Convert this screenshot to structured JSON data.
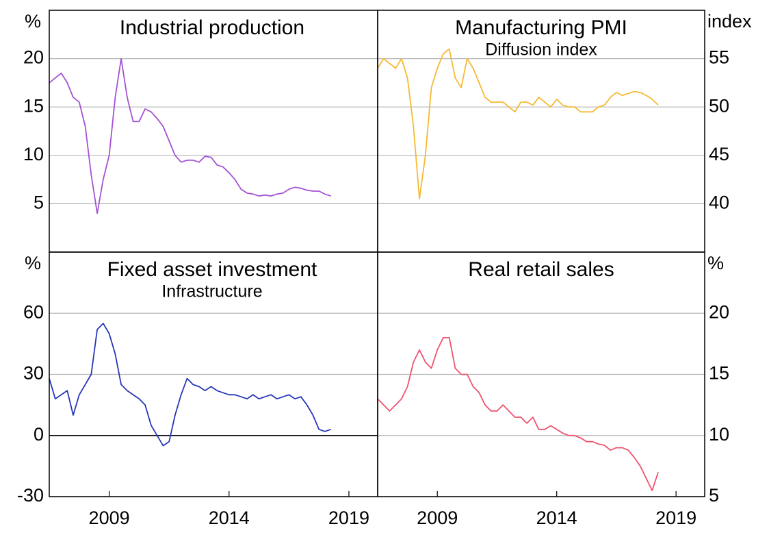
{
  "chart_data": [
    {
      "type": "line",
      "title": "Industrial production",
      "unit": "%",
      "axis_side": "left",
      "x": [
        2007.0,
        2007.25,
        2007.5,
        2007.75,
        2008.0,
        2008.25,
        2008.5,
        2008.75,
        2009.0,
        2009.25,
        2009.5,
        2009.75,
        2010.0,
        2010.25,
        2010.5,
        2010.75,
        2011.0,
        2011.25,
        2011.5,
        2011.75,
        2012.0,
        2012.25,
        2012.5,
        2012.75,
        2013.0,
        2013.25,
        2013.5,
        2013.75,
        2014.0,
        2014.25,
        2014.5,
        2014.75,
        2015.0,
        2015.25,
        2015.5,
        2015.75,
        2016.0,
        2016.25,
        2016.5,
        2016.75,
        2017.0,
        2017.25,
        2017.5,
        2017.75,
        2018.0,
        2018.25,
        2018.5,
        2018.75
      ],
      "series": [
        {
          "name": "Industrial production",
          "color": "#a452d4",
          "values": [
            17.5,
            18,
            18.5,
            17.5,
            16,
            15.5,
            13,
            8,
            4,
            7.5,
            10,
            16,
            20,
            16,
            13.5,
            13.5,
            14.8,
            14.5,
            13.8,
            13,
            11.5,
            10,
            9.3,
            9.5,
            9.5,
            9.3,
            9.9,
            9.8,
            9,
            8.8,
            8.2,
            7.5,
            6.5,
            6.1,
            6,
            5.8,
            5.9,
            5.8,
            6,
            6.1,
            6.5,
            6.7,
            6.6,
            6.4,
            6.3,
            6.3,
            6,
            5.8
          ]
        }
      ],
      "xlim": [
        2007,
        2020.7
      ],
      "ylim": [
        0,
        25
      ],
      "yticks": [
        5,
        10,
        15,
        20
      ],
      "grid": true
    },
    {
      "type": "line",
      "title": "Manufacturing PMI",
      "subtitle": "Diffusion index",
      "unit": "index",
      "axis_side": "right",
      "x": [
        2007.0,
        2007.25,
        2007.5,
        2007.75,
        2008.0,
        2008.25,
        2008.5,
        2008.75,
        2009.0,
        2009.25,
        2009.5,
        2009.75,
        2010.0,
        2010.25,
        2010.5,
        2010.75,
        2011.0,
        2011.25,
        2011.5,
        2011.75,
        2012.0,
        2012.25,
        2012.5,
        2012.75,
        2013.0,
        2013.25,
        2013.5,
        2013.75,
        2014.0,
        2014.25,
        2014.5,
        2014.75,
        2015.0,
        2015.25,
        2015.5,
        2015.75,
        2016.0,
        2016.25,
        2016.5,
        2016.75,
        2017.0,
        2017.25,
        2017.5,
        2017.75,
        2018.0,
        2018.25,
        2018.5,
        2018.75
      ],
      "series": [
        {
          "name": "Manufacturing PMI",
          "color": "#f6b931",
          "values": [
            54,
            55,
            54.5,
            54,
            55,
            53,
            48,
            40.5,
            45,
            52,
            54,
            55.5,
            56,
            53,
            52,
            55,
            54,
            52.5,
            51,
            50.5,
            50.5,
            50.5,
            50,
            49.5,
            50.5,
            50.5,
            50.2,
            51,
            50.5,
            50,
            50.8,
            50.2,
            50,
            50,
            49.5,
            49.5,
            49.5,
            50,
            50.2,
            51,
            51.5,
            51.2,
            51.4,
            51.6,
            51.5,
            51.2,
            50.8,
            50.2
          ]
        }
      ],
      "xlim": [
        2007,
        2020.7
      ],
      "ylim": [
        35,
        60
      ],
      "yticks": [
        40,
        45,
        50,
        55
      ],
      "grid": true
    },
    {
      "type": "line",
      "title": "Fixed asset investment",
      "subtitle": "Infrastructure",
      "unit": "%",
      "axis_side": "left",
      "x": [
        2007.0,
        2007.25,
        2007.5,
        2007.75,
        2008.0,
        2008.25,
        2008.5,
        2008.75,
        2009.0,
        2009.25,
        2009.5,
        2009.75,
        2010.0,
        2010.25,
        2010.5,
        2010.75,
        2011.0,
        2011.25,
        2011.5,
        2011.75,
        2012.0,
        2012.25,
        2012.5,
        2012.75,
        2013.0,
        2013.25,
        2013.5,
        2013.75,
        2014.0,
        2014.25,
        2014.5,
        2014.75,
        2015.0,
        2015.25,
        2015.5,
        2015.75,
        2016.0,
        2016.25,
        2016.5,
        2016.75,
        2017.0,
        2017.25,
        2017.5,
        2017.75,
        2018.0,
        2018.25,
        2018.5,
        2018.75
      ],
      "series": [
        {
          "name": "Fixed asset investment",
          "color": "#2536b8",
          "values": [
            28,
            18,
            20,
            22,
            10,
            20,
            25,
            30,
            52,
            55,
            50,
            40,
            25,
            22,
            20,
            18,
            15,
            5,
            0,
            -5,
            -3,
            10,
            20,
            28,
            25,
            24,
            22,
            24,
            22,
            21,
            20,
            20,
            19,
            18,
            20,
            18,
            19,
            20,
            18,
            19,
            20,
            18,
            19,
            15,
            10,
            3,
            2,
            3
          ]
        }
      ],
      "xlim": [
        2007,
        2020.7
      ],
      "ylim": [
        -30,
        90
      ],
      "yticks": [
        -30,
        0,
        30,
        60
      ],
      "xticks": [
        {
          "value": 2009.5,
          "label": "2009"
        },
        {
          "value": 2014.5,
          "label": "2014"
        },
        {
          "value": 2019.5,
          "label": "2019"
        }
      ],
      "grid": true
    },
    {
      "type": "line",
      "title": "Real retail sales",
      "unit": "%",
      "axis_side": "right",
      "x": [
        2007.0,
        2007.25,
        2007.5,
        2007.75,
        2008.0,
        2008.25,
        2008.5,
        2008.75,
        2009.0,
        2009.25,
        2009.5,
        2009.75,
        2010.0,
        2010.25,
        2010.5,
        2010.75,
        2011.0,
        2011.25,
        2011.5,
        2011.75,
        2012.0,
        2012.25,
        2012.5,
        2012.75,
        2013.0,
        2013.25,
        2013.5,
        2013.75,
        2014.0,
        2014.25,
        2014.5,
        2014.75,
        2015.0,
        2015.25,
        2015.5,
        2015.75,
        2016.0,
        2016.25,
        2016.5,
        2016.75,
        2017.0,
        2017.25,
        2017.5,
        2017.75,
        2018.0,
        2018.25,
        2018.5,
        2018.75
      ],
      "series": [
        {
          "name": "Real retail sales",
          "color": "#f0526f",
          "values": [
            13,
            12.5,
            12,
            12.5,
            13,
            14,
            16,
            17,
            16,
            15.5,
            17,
            18,
            18,
            15.5,
            15,
            15,
            14,
            13.5,
            12.5,
            12,
            12,
            12.5,
            12,
            11.5,
            11.5,
            11,
            11.5,
            10.5,
            10.5,
            10.8,
            10.5,
            10.2,
            10,
            10,
            9.8,
            9.5,
            9.5,
            9.3,
            9.2,
            8.8,
            9,
            9,
            8.8,
            8.2,
            7.5,
            6.5,
            5.5,
            7
          ]
        }
      ],
      "xlim": [
        2007,
        2020.7
      ],
      "ylim": [
        5,
        25
      ],
      "yticks": [
        5,
        10,
        15,
        20
      ],
      "xticks": [
        {
          "value": 2009.5,
          "label": "2009"
        },
        {
          "value": 2014.5,
          "label": "2014"
        },
        {
          "value": 2019.5,
          "label": "2019"
        }
      ],
      "grid": true
    }
  ]
}
